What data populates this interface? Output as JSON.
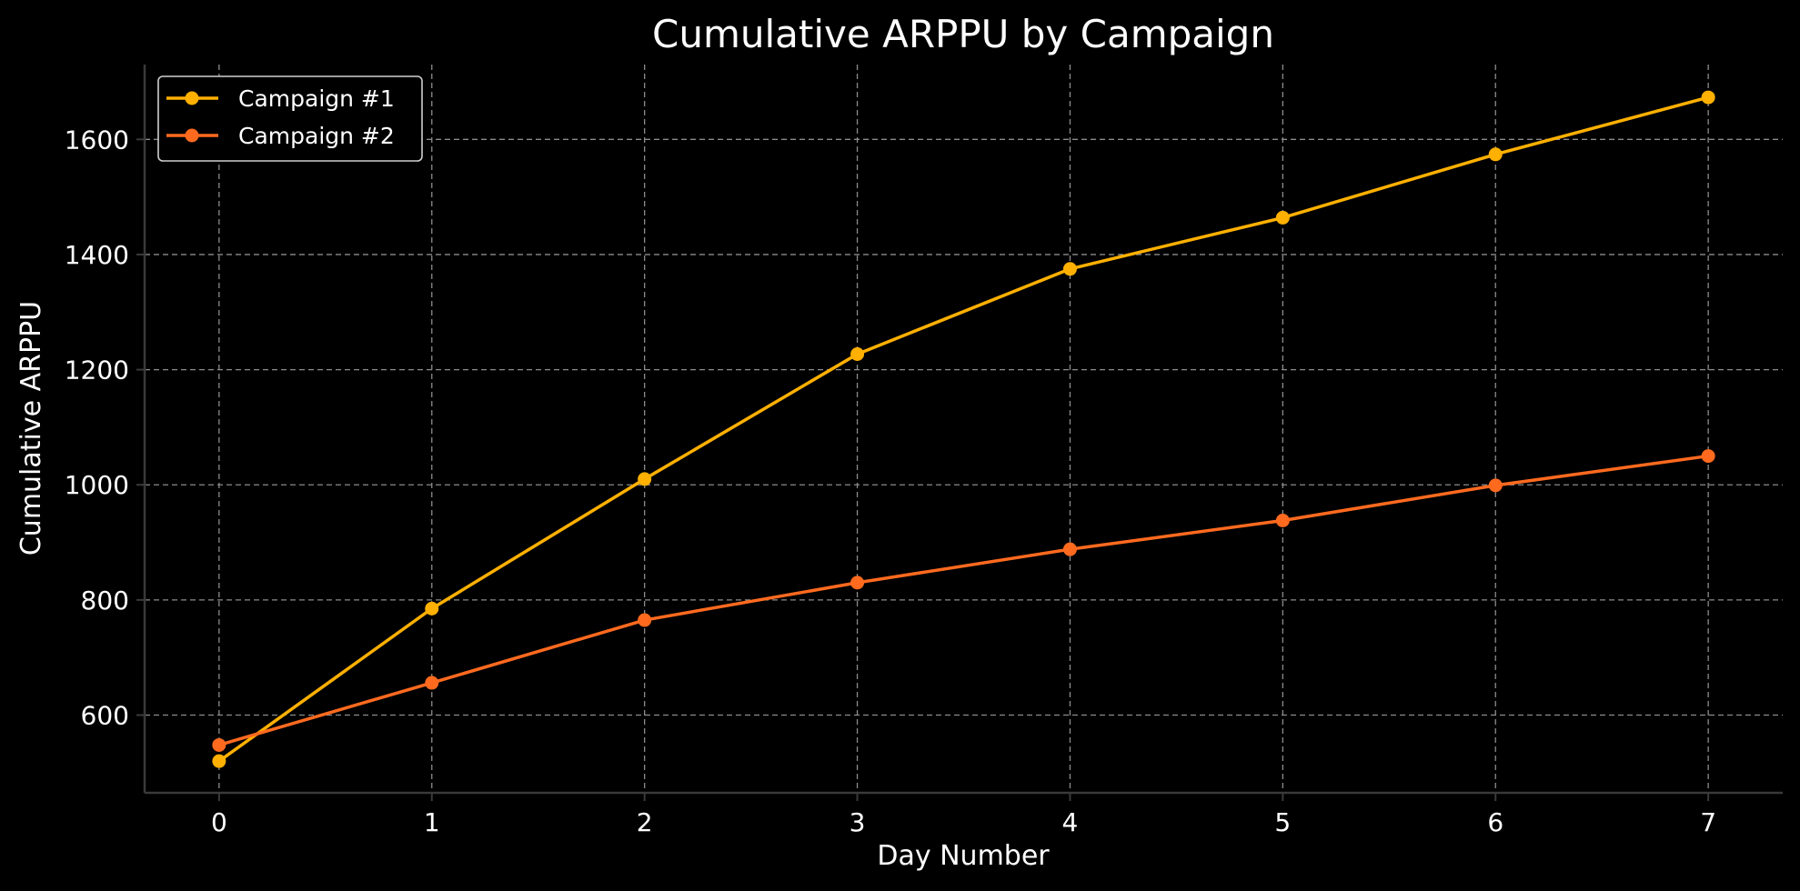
{
  "chart_data": {
    "type": "line",
    "title": "Cumulative ARPPU by Campaign",
    "xlabel": "Day Number",
    "ylabel": "Cumulative ARPPU",
    "x": [
      0,
      1,
      2,
      3,
      4,
      5,
      6,
      7
    ],
    "xlim": [
      -0.35,
      7.35
    ],
    "ylim": [
      465,
      1730
    ],
    "xticks": [
      0,
      1,
      2,
      3,
      4,
      5,
      6,
      7
    ],
    "yticks": [
      600,
      800,
      1000,
      1200,
      1400,
      1600
    ],
    "grid": true,
    "legend_position": "top-left",
    "series": [
      {
        "name": "Campaign #1",
        "color": "#FFB000",
        "values": [
          520,
          785,
          1010,
          1227,
          1375,
          1464,
          1574,
          1673
        ]
      },
      {
        "name": "Campaign #2",
        "color": "#FF6A1F",
        "values": [
          548,
          656,
          765,
          830,
          888,
          938,
          999,
          1050
        ]
      }
    ]
  }
}
